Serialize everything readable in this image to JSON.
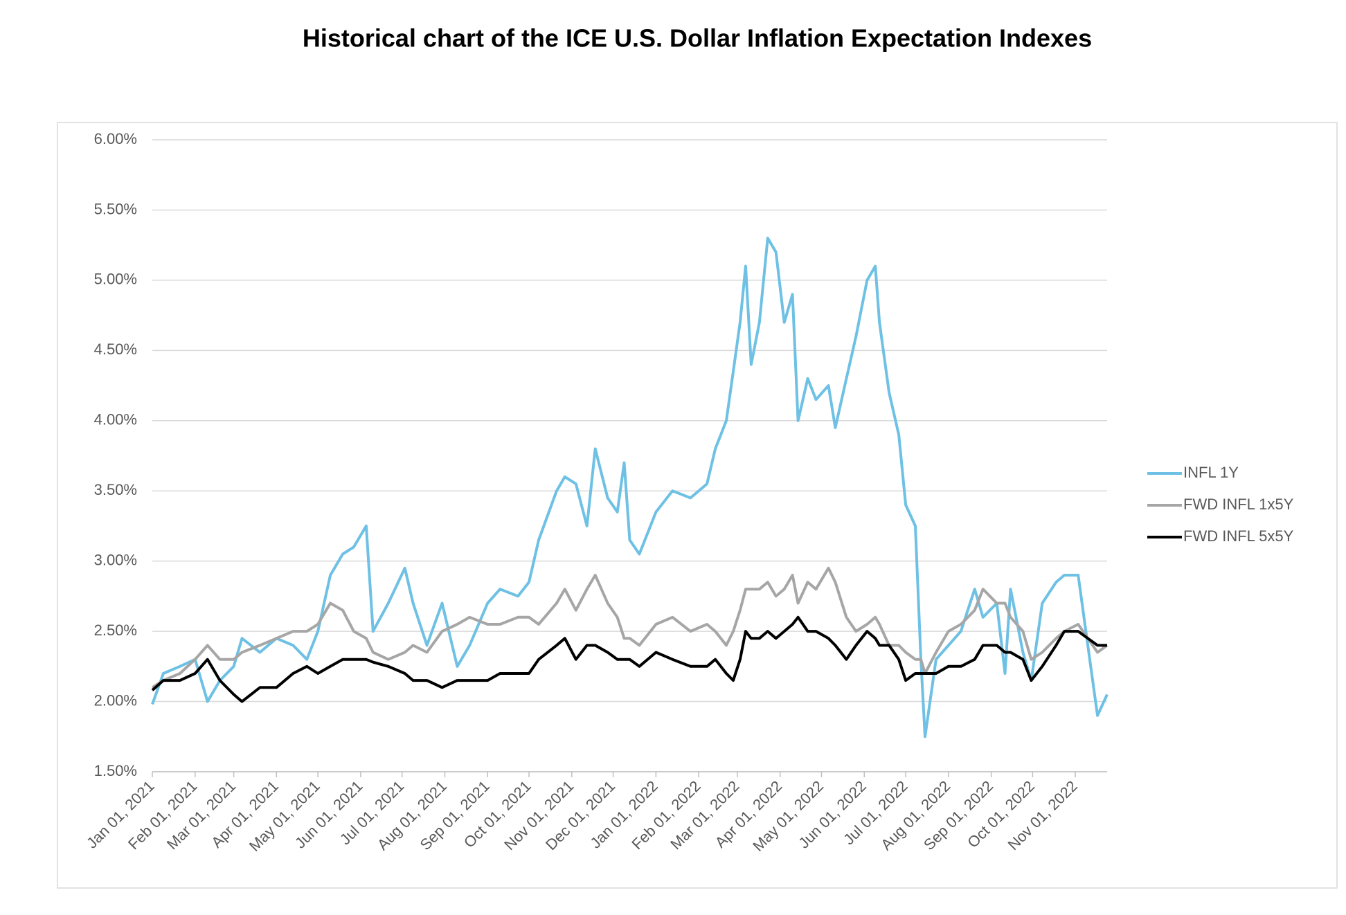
{
  "chart_data": {
    "type": "line",
    "title": "Historical chart of the ICE U.S. Dollar Inflation Expectation Indexes",
    "x": [
      "2021-01-01",
      "2021-01-09",
      "2021-01-21",
      "2021-02-01",
      "2021-02-10",
      "2021-02-19",
      "2021-03-01",
      "2021-03-07",
      "2021-03-20",
      "2021-04-01",
      "2021-04-13",
      "2021-04-23",
      "2021-05-01",
      "2021-05-10",
      "2021-05-19",
      "2021-05-27",
      "2021-06-05",
      "2021-06-10",
      "2021-06-21",
      "2021-07-03",
      "2021-07-09",
      "2021-07-19",
      "2021-07-30",
      "2021-08-10",
      "2021-08-19",
      "2021-09-01",
      "2021-09-10",
      "2021-09-23",
      "2021-10-01",
      "2021-10-08",
      "2021-10-21",
      "2021-10-27",
      "2021-11-04",
      "2021-11-12",
      "2021-11-18",
      "2021-11-27",
      "2021-12-04",
      "2021-12-09",
      "2021-12-13",
      "2021-12-20",
      "2022-01-01",
      "2022-01-13",
      "2022-01-26",
      "2022-02-07",
      "2022-02-13",
      "2022-02-21",
      "2022-02-26",
      "2022-03-03",
      "2022-03-07",
      "2022-03-11",
      "2022-03-17",
      "2022-03-23",
      "2022-03-29",
      "2022-04-04",
      "2022-04-10",
      "2022-04-14",
      "2022-04-21",
      "2022-04-27",
      "2022-05-06",
      "2022-05-11",
      "2022-05-19",
      "2022-05-26",
      "2022-06-03",
      "2022-06-09",
      "2022-06-12",
      "2022-06-19",
      "2022-06-26",
      "2022-07-01",
      "2022-07-08",
      "2022-07-12",
      "2022-07-15",
      "2022-07-23",
      "2022-08-01",
      "2022-08-10",
      "2022-08-20",
      "2022-08-26",
      "2022-09-05",
      "2022-09-11",
      "2022-09-15",
      "2022-09-24",
      "2022-09-30",
      "2022-10-08",
      "2022-10-18",
      "2022-10-24",
      "2022-11-03",
      "2022-11-10",
      "2022-11-17",
      "2022-11-24"
    ],
    "series": [
      {
        "name": "INFL 1Y",
        "color": "#6ec1e4",
        "values": [
          1.98,
          2.2,
          2.25,
          2.3,
          2.0,
          2.15,
          2.25,
          2.45,
          2.35,
          2.45,
          2.4,
          2.3,
          2.5,
          2.9,
          3.05,
          3.1,
          3.25,
          2.5,
          2.7,
          2.95,
          2.7,
          2.4,
          2.7,
          2.25,
          2.4,
          2.7,
          2.8,
          2.75,
          2.85,
          3.15,
          3.5,
          3.6,
          3.55,
          3.25,
          3.8,
          3.45,
          3.35,
          3.7,
          3.15,
          3.05,
          3.35,
          3.5,
          3.45,
          3.55,
          3.8,
          4.0,
          4.35,
          4.7,
          5.1,
          4.4,
          4.7,
          5.3,
          5.2,
          4.7,
          4.9,
          4.0,
          4.3,
          4.15,
          4.25,
          3.95,
          4.3,
          4.6,
          5.0,
          5.1,
          4.7,
          4.2,
          3.9,
          3.4,
          3.25,
          2.3,
          1.75,
          2.3,
          2.4,
          2.5,
          2.8,
          2.6,
          2.7,
          2.2,
          2.8,
          2.35,
          2.15,
          2.7,
          2.85,
          2.9,
          2.9,
          2.4,
          1.9,
          2.05
        ]
      },
      {
        "name": "FWD INFL 1x5Y",
        "color": "#a6a6a6",
        "values": [
          2.1,
          2.15,
          2.2,
          2.3,
          2.4,
          2.3,
          2.3,
          2.35,
          2.4,
          2.45,
          2.5,
          2.5,
          2.55,
          2.7,
          2.65,
          2.5,
          2.45,
          2.35,
          2.3,
          2.35,
          2.4,
          2.35,
          2.5,
          2.55,
          2.6,
          2.55,
          2.55,
          2.6,
          2.6,
          2.55,
          2.7,
          2.8,
          2.65,
          2.8,
          2.9,
          2.7,
          2.6,
          2.45,
          2.45,
          2.4,
          2.55,
          2.6,
          2.5,
          2.55,
          2.5,
          2.4,
          2.5,
          2.65,
          2.8,
          2.8,
          2.8,
          2.85,
          2.75,
          2.8,
          2.9,
          2.7,
          2.85,
          2.8,
          2.95,
          2.85,
          2.6,
          2.5,
          2.55,
          2.6,
          2.55,
          2.4,
          2.4,
          2.35,
          2.3,
          2.3,
          2.2,
          2.35,
          2.5,
          2.55,
          2.65,
          2.8,
          2.7,
          2.7,
          2.6,
          2.5,
          2.3,
          2.35,
          2.45,
          2.5,
          2.55,
          2.45,
          2.35,
          2.4
        ]
      },
      {
        "name": "FWD INFL 5x5Y",
        "color": "#000000",
        "values": [
          2.08,
          2.15,
          2.15,
          2.2,
          2.3,
          2.15,
          2.05,
          2.0,
          2.1,
          2.1,
          2.2,
          2.25,
          2.2,
          2.25,
          2.3,
          2.3,
          2.3,
          2.28,
          2.25,
          2.2,
          2.15,
          2.15,
          2.1,
          2.15,
          2.15,
          2.15,
          2.2,
          2.2,
          2.2,
          2.3,
          2.4,
          2.45,
          2.3,
          2.4,
          2.4,
          2.35,
          2.3,
          2.3,
          2.3,
          2.25,
          2.35,
          2.3,
          2.25,
          2.25,
          2.3,
          2.2,
          2.15,
          2.3,
          2.5,
          2.45,
          2.45,
          2.5,
          2.45,
          2.5,
          2.55,
          2.6,
          2.5,
          2.5,
          2.45,
          2.4,
          2.3,
          2.4,
          2.5,
          2.45,
          2.4,
          2.4,
          2.3,
          2.15,
          2.2,
          2.2,
          2.2,
          2.2,
          2.25,
          2.25,
          2.3,
          2.4,
          2.4,
          2.35,
          2.35,
          2.3,
          2.15,
          2.25,
          2.4,
          2.5,
          2.5,
          2.45,
          2.4,
          2.4
        ]
      }
    ],
    "xlim": [
      "2021-01-01",
      "2022-11-24"
    ],
    "xticks": [
      {
        "value": "2021-01-01",
        "label": "Jan 01, 2021"
      },
      {
        "value": "2021-02-01",
        "label": "Feb 01, 2021"
      },
      {
        "value": "2021-03-01",
        "label": "Mar 01, 2021"
      },
      {
        "value": "2021-04-01",
        "label": "Apr 01, 2021"
      },
      {
        "value": "2021-05-01",
        "label": "May 01, 2021"
      },
      {
        "value": "2021-06-01",
        "label": "Jun 01, 2021"
      },
      {
        "value": "2021-07-01",
        "label": "Jul 01, 2021"
      },
      {
        "value": "2021-08-01",
        "label": "Aug 01, 2021"
      },
      {
        "value": "2021-09-01",
        "label": "Sep 01, 2021"
      },
      {
        "value": "2021-10-01",
        "label": "Oct 01, 2021"
      },
      {
        "value": "2021-11-01",
        "label": "Nov 01, 2021"
      },
      {
        "value": "2021-12-01",
        "label": "Dec 01, 2021"
      },
      {
        "value": "2022-01-01",
        "label": "Jan 01, 2022"
      },
      {
        "value": "2022-02-01",
        "label": "Feb 01, 2022"
      },
      {
        "value": "2022-03-01",
        "label": "Mar 01, 2022"
      },
      {
        "value": "2022-04-01",
        "label": "Apr 01, 2022"
      },
      {
        "value": "2022-05-01",
        "label": "May 01, 2022"
      },
      {
        "value": "2022-06-01",
        "label": "Jun 01, 2022"
      },
      {
        "value": "2022-07-01",
        "label": "Jul 01, 2022"
      },
      {
        "value": "2022-08-01",
        "label": "Aug 01, 2022"
      },
      {
        "value": "2022-09-01",
        "label": "Sep 01, 2022"
      },
      {
        "value": "2022-10-01",
        "label": "Oct 01, 2022"
      },
      {
        "value": "2022-11-01",
        "label": "Nov 01, 2022"
      }
    ],
    "ylim": [
      1.5,
      6.0
    ],
    "yticks": [
      {
        "value": 1.5,
        "label": "1.50%"
      },
      {
        "value": 2.0,
        "label": "2.00%"
      },
      {
        "value": 2.5,
        "label": "2.50%"
      },
      {
        "value": 3.0,
        "label": "3.00%"
      },
      {
        "value": 3.5,
        "label": "3.50%"
      },
      {
        "value": 4.0,
        "label": "4.00%"
      },
      {
        "value": 4.5,
        "label": "4.50%"
      },
      {
        "value": 5.0,
        "label": "5.00%"
      },
      {
        "value": 5.5,
        "label": "5.50%"
      },
      {
        "value": 6.0,
        "label": "6.00%"
      }
    ],
    "grid": true,
    "legend": "right"
  }
}
